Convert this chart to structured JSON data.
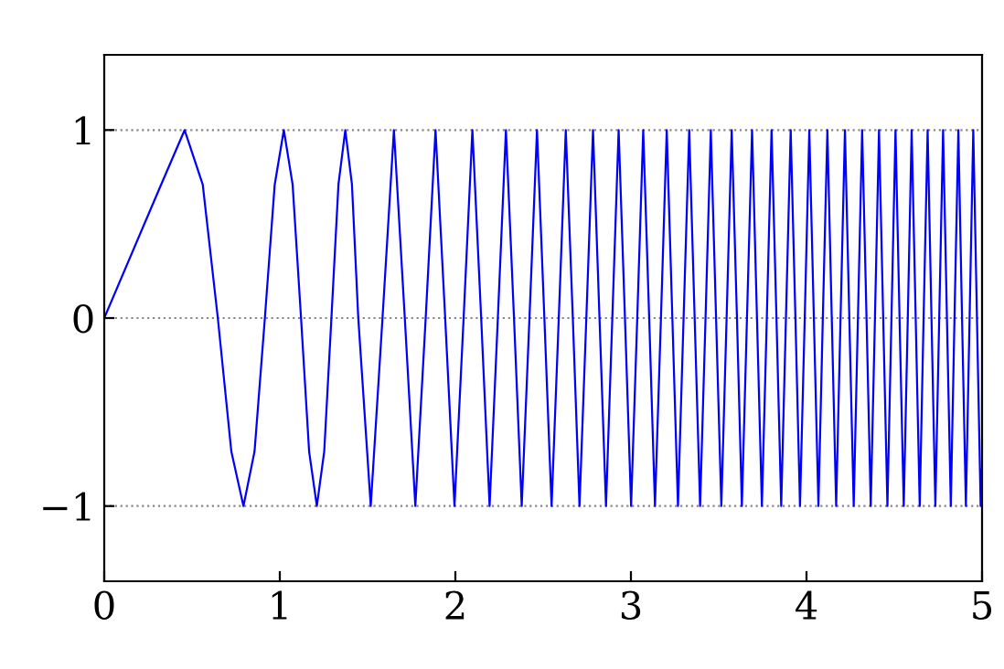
{
  "chart_data": {
    "type": "line",
    "series": [
      {
        "color": "#0000ff",
        "x": [
          0,
          0.324,
          0.458,
          0.561,
          0.647,
          0.724,
          0.793,
          0.856,
          0.915,
          0.971,
          1.023,
          1.073,
          1.121,
          1.167,
          1.211,
          1.253,
          1.294,
          1.334,
          1.373,
          1.411,
          1.447,
          1.518,
          1.585,
          1.65,
          1.712,
          1.772,
          1.831,
          1.887,
          1.942,
          1.995,
          2.047,
          2.097,
          2.147,
          2.195,
          2.242,
          2.288,
          2.334,
          2.378,
          2.422,
          2.465,
          2.507,
          2.548,
          2.589,
          2.629,
          2.669,
          2.707,
          2.746,
          2.784,
          2.821,
          2.858,
          2.894,
          2.93,
          2.966,
          3.001,
          3.036,
          3.07,
          3.104,
          3.137,
          3.171,
          3.204,
          3.236,
          3.268,
          3.3,
          3.332,
          3.363,
          3.394,
          3.425,
          3.455,
          3.485,
          3.515,
          3.545,
          3.574,
          3.604,
          3.632,
          3.661,
          3.69,
          3.718,
          3.746,
          3.774,
          3.801,
          3.829,
          3.856,
          3.883,
          3.91,
          3.937,
          3.963,
          3.99,
          4.016,
          4.042,
          4.068,
          4.093,
          4.119,
          4.144,
          4.169,
          4.194,
          4.219,
          4.244,
          4.269,
          4.293,
          4.317,
          4.342,
          4.366,
          4.39,
          4.413,
          4.437,
          4.461,
          4.484,
          4.507,
          4.53,
          4.554,
          4.577,
          4.599,
          4.622,
          4.645,
          4.667,
          4.69,
          4.712,
          4.734,
          4.756,
          4.778,
          4.8,
          4.822,
          4.843,
          4.865,
          4.886,
          4.908,
          4.929,
          4.95,
          4.971,
          4.992,
          5
        ],
        "values": [
          0,
          0.71,
          1,
          0.71,
          0,
          -0.71,
          -1,
          -0.71,
          0,
          0.71,
          1,
          0.71,
          0,
          -0.71,
          -1,
          -0.71,
          0,
          0.71,
          1,
          0.71,
          0,
          -1,
          0,
          1,
          0,
          -1,
          0,
          1,
          0,
          -1,
          0,
          1,
          0,
          -1,
          0,
          1,
          0,
          -1,
          0,
          1,
          0,
          -1,
          0,
          1,
          0,
          -1,
          0,
          1,
          0,
          -1,
          0,
          1,
          0,
          -1,
          0,
          1,
          0,
          -1,
          0,
          1,
          0,
          -1,
          0,
          1,
          0,
          -1,
          0,
          1,
          0,
          -1,
          0,
          1,
          0,
          -1,
          0,
          1,
          0,
          -1,
          0,
          1,
          0,
          -1,
          0,
          1,
          0,
          -1,
          0,
          1,
          0,
          -1,
          0,
          1,
          0,
          -1,
          0,
          1,
          0,
          -1,
          0,
          1,
          0,
          -1,
          0,
          1,
          0,
          -1,
          0,
          1,
          0,
          -1,
          0,
          1,
          0,
          -1,
          0,
          1,
          0,
          -1,
          0,
          1,
          0,
          -1,
          0,
          1,
          0,
          -1,
          0,
          1,
          0,
          -1,
          -0.8
        ]
      }
    ],
    "xlim": [
      0,
      5
    ],
    "ylim": [
      -1.4,
      1.4
    ],
    "xticks": [
      0,
      1,
      2,
      3,
      4,
      5
    ],
    "yticks": [
      {
        "value": -1,
        "label": "−1"
      },
      0,
      1
    ],
    "grid": "y",
    "line_style": "solid",
    "marker": "none"
  }
}
